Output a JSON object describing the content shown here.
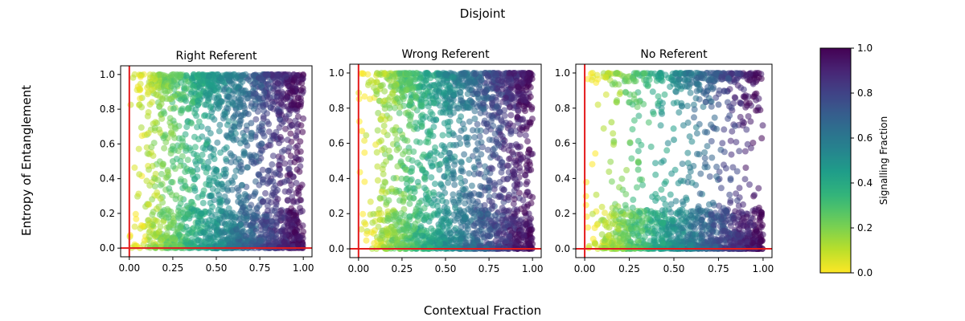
{
  "figure": {
    "suptitle": "Disjoint",
    "xlabel": "Contextual Fraction",
    "ylabel": "Entropy of Entanglement",
    "colorbar": {
      "label": "Signalling Fraction",
      "ticks": [
        "0.0",
        "0.2",
        "0.4",
        "0.6",
        "0.8",
        "1.0"
      ],
      "range": [
        0,
        1
      ],
      "colormap": "viridis_r"
    }
  },
  "colors": {
    "reference_line": "#e41a1c",
    "viridis": [
      "#440154",
      "#482878",
      "#3e4989",
      "#31688e",
      "#26828e",
      "#1f9e89",
      "#35b779",
      "#6ece58",
      "#b5de2b",
      "#fde725"
    ]
  },
  "chart_data": [
    {
      "type": "scatter",
      "title": "Right Referent",
      "xlim": [
        -0.05,
        1.05
      ],
      "ylim": [
        -0.05,
        1.05
      ],
      "xticks": [
        "0.00",
        "0.25",
        "0.50",
        "0.75",
        "1.00"
      ],
      "yticks": [
        "0.0",
        "0.2",
        "0.4",
        "0.6",
        "0.8",
        "1.0"
      ],
      "reference_lines": {
        "x": 0,
        "y": 0
      },
      "sample_points": [
        [
          0.05,
          0.93,
          0.02
        ],
        [
          0.12,
          0.98,
          0.08
        ],
        [
          0.25,
          0.5,
          0.3
        ],
        [
          0.5,
          0.45,
          0.5
        ],
        [
          0.7,
          0.72,
          0.7
        ],
        [
          0.95,
          0.98,
          0.97
        ],
        [
          0.97,
          0.02,
          0.98
        ]
      ]
    },
    {
      "type": "scatter",
      "title": "Wrong Referent",
      "xlim": [
        -0.05,
        1.05
      ],
      "ylim": [
        -0.05,
        1.05
      ],
      "xticks": [
        "0.00",
        "0.25",
        "0.50",
        "0.75",
        "1.00"
      ],
      "yticks": [
        "0.0",
        "0.2",
        "0.4",
        "0.6",
        "0.8",
        "1.0"
      ],
      "reference_lines": {
        "x": 0,
        "y": 0
      },
      "sample_points": [
        [
          0.02,
          0.67,
          0.01
        ],
        [
          0.04,
          0.14,
          0.02
        ],
        [
          0.2,
          0.98,
          0.2
        ],
        [
          0.5,
          0.5,
          0.5
        ],
        [
          0.8,
          0.6,
          0.8
        ],
        [
          0.97,
          0.97,
          0.97
        ],
        [
          0.98,
          0.03,
          0.98
        ]
      ]
    },
    {
      "type": "scatter",
      "title": "No Referent",
      "xlim": [
        -0.05,
        1.05
      ],
      "ylim": [
        -0.05,
        1.05
      ],
      "xticks": [
        "0.00",
        "0.25",
        "0.50",
        "0.75",
        "1.00"
      ],
      "yticks": [
        "0.0",
        "0.2",
        "0.4",
        "0.6",
        "0.8",
        "1.0"
      ],
      "reference_lines": {
        "x": 0,
        "y": 0
      },
      "sample_points": [
        [
          0.04,
          0.96,
          0.03
        ],
        [
          0.15,
          0.72,
          0.14
        ],
        [
          0.3,
          0.45,
          0.3
        ],
        [
          0.5,
          0.62,
          0.5
        ],
        [
          0.75,
          0.82,
          0.75
        ],
        [
          0.96,
          0.95,
          0.96
        ],
        [
          0.98,
          0.02,
          0.98
        ]
      ]
    }
  ]
}
